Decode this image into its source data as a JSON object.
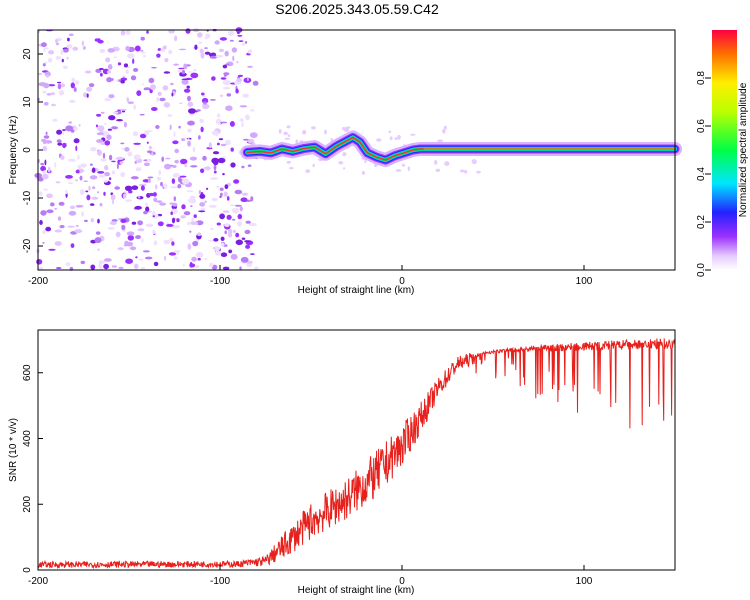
{
  "title": "S206.2025.343.05.59.C42",
  "colors": {
    "line": "#e8201c",
    "axis": "#000000",
    "speckle": "#8a2be2"
  },
  "chart_data": [
    {
      "type": "heatmap",
      "xlabel": "Height of straight line (km)",
      "ylabel": "Frequency (Hz)",
      "xlim": [
        -200,
        150
      ],
      "ylim": [
        -25,
        25
      ],
      "xticks": [
        -200,
        -100,
        0,
        100
      ],
      "yticks": [
        -20,
        -10,
        0,
        10,
        20
      ],
      "colorbar": {
        "label": "Normalized spectral amplitude",
        "range": [
          0,
          1
        ],
        "ticks": [
          "0.0",
          "0.2",
          "0.4",
          "0.6",
          "0.8"
        ],
        "tick_values": [
          0.0,
          0.2,
          0.4,
          0.6,
          0.8
        ]
      },
      "noise_region_x": [
        -200,
        -80
      ],
      "ridge": [
        {
          "x": -85,
          "y": -0.5
        },
        {
          "x": -78,
          "y": -0.3
        },
        {
          "x": -72,
          "y": -0.6
        },
        {
          "x": -66,
          "y": 0.2
        },
        {
          "x": -60,
          "y": -0.3
        },
        {
          "x": -54,
          "y": 0.3
        },
        {
          "x": -48,
          "y": 0.6
        },
        {
          "x": -42,
          "y": -0.8
        },
        {
          "x": -36,
          "y": 0.8
        },
        {
          "x": -31,
          "y": 1.8
        },
        {
          "x": -27,
          "y": 2.6
        },
        {
          "x": -23,
          "y": 1.6
        },
        {
          "x": -19,
          "y": -0.6
        },
        {
          "x": -14,
          "y": -1.5
        },
        {
          "x": -9,
          "y": -2.1
        },
        {
          "x": -4,
          "y": -1.2
        },
        {
          "x": 1,
          "y": -0.6
        },
        {
          "x": 6,
          "y": 0.0
        },
        {
          "x": 10,
          "y": 0.2
        },
        {
          "x": 150,
          "y": 0.2
        }
      ]
    },
    {
      "type": "line",
      "xlabel": "Height of straight line (km)",
      "ylabel": "SNR (10 * v/v)",
      "xlim": [
        -200,
        150
      ],
      "ylim": [
        0,
        730
      ],
      "xticks": [
        -200,
        -100,
        0,
        100
      ],
      "yticks": [
        0,
        200,
        400,
        600
      ],
      "envelope_x": [
        -200,
        -90,
        -75,
        -65,
        -50,
        -30,
        -15,
        0,
        10,
        20,
        30,
        45,
        60,
        100,
        150
      ],
      "envelope_y": [
        18,
        20,
        30,
        80,
        160,
        230,
        300,
        390,
        470,
        560,
        630,
        660,
        670,
        680,
        690
      ],
      "noise_amplitude": [
        12,
        12,
        20,
        50,
        70,
        80,
        90,
        80,
        60,
        40,
        30,
        20,
        40,
        80,
        100
      ]
    }
  ]
}
